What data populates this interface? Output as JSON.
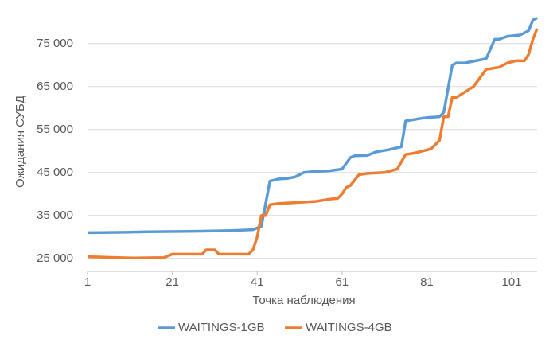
{
  "chart_data": {
    "type": "line",
    "xlabel": "Точка наблюдения",
    "ylabel": "Ожидания СУБД",
    "xlim": [
      1,
      107
    ],
    "xticks": [
      1,
      21,
      41,
      61,
      81,
      101
    ],
    "ylim": [
      22000,
      82000
    ],
    "yticks": [
      {
        "value": 25000,
        "label": "25 000"
      },
      {
        "value": 35000,
        "label": "35 000"
      },
      {
        "value": 45000,
        "label": "45 000"
      },
      {
        "value": 55000,
        "label": "55 000"
      },
      {
        "value": 65000,
        "label": "65 000"
      },
      {
        "value": 75000,
        "label": "75 000"
      }
    ],
    "grid": true,
    "legend": "bottom",
    "series": [
      {
        "name": "WAITINGS-1GB",
        "color": "#5b9bd5",
        "x": [
          1,
          10,
          15,
          25,
          35,
          40,
          42,
          44,
          46,
          48,
          50,
          52,
          54,
          58,
          61,
          63,
          64,
          67,
          69,
          72,
          75,
          76,
          79,
          81,
          84,
          85,
          87,
          88,
          90,
          95,
          97,
          98,
          100,
          103,
          105,
          106,
          107
        ],
        "values": [
          31000,
          31100,
          31200,
          31300,
          31500,
          31700,
          32500,
          43000,
          43500,
          43600,
          44000,
          45000,
          45200,
          45400,
          45800,
          48500,
          48900,
          49000,
          49800,
          50300,
          51000,
          57000,
          57500,
          57800,
          58000,
          59000,
          70000,
          70500,
          70500,
          71500,
          76000,
          76000,
          76700,
          77000,
          78000,
          80500,
          81000
        ]
      },
      {
        "name": "WAITINGS-4GB",
        "color": "#ed7d31",
        "x": [
          1,
          5,
          8,
          12,
          19,
          21,
          28,
          29,
          31,
          32,
          39,
          40,
          41,
          42,
          43,
          44,
          46,
          50,
          55,
          58,
          60,
          61,
          62,
          63,
          65,
          67,
          71,
          74,
          76,
          78,
          82,
          84,
          85,
          86,
          87,
          88,
          92,
          95,
          98,
          100,
          102,
          104,
          105,
          106,
          107
        ],
        "values": [
          25400,
          25300,
          25200,
          25100,
          25200,
          26000,
          26000,
          27000,
          27000,
          26000,
          26000,
          27000,
          30000,
          35000,
          35000,
          37500,
          37800,
          38000,
          38300,
          38800,
          39000,
          40000,
          41500,
          42000,
          44500,
          44800,
          45000,
          45800,
          49200,
          49500,
          50500,
          52500,
          58000,
          58000,
          62500,
          62500,
          65000,
          69000,
          69500,
          70500,
          71000,
          71000,
          72500,
          76000,
          78500
        ]
      }
    ]
  }
}
